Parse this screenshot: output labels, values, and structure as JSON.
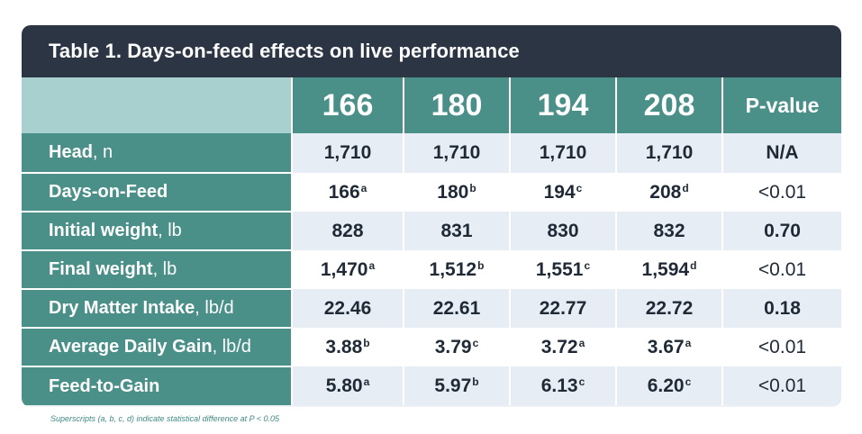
{
  "title": "Table 1. Days-on-feed effects on live performance",
  "columns": [
    "166",
    "180",
    "194",
    "208",
    "P-value"
  ],
  "rows": [
    {
      "label": "Head",
      "unit": ", n",
      "values": [
        {
          "v": "1,710",
          "s": ""
        },
        {
          "v": "1,710",
          "s": ""
        },
        {
          "v": "1,710",
          "s": ""
        },
        {
          "v": "1,710",
          "s": ""
        }
      ],
      "p": {
        "v": "N/A",
        "bold": true
      }
    },
    {
      "label": "Days-on-Feed",
      "unit": "",
      "values": [
        {
          "v": "166",
          "s": "a"
        },
        {
          "v": "180",
          "s": "b"
        },
        {
          "v": "194",
          "s": "c"
        },
        {
          "v": "208",
          "s": "d"
        }
      ],
      "p": {
        "v": "<0.01",
        "bold": false
      }
    },
    {
      "label": "Initial weight",
      "unit": ", lb",
      "values": [
        {
          "v": "828",
          "s": ""
        },
        {
          "v": "831",
          "s": ""
        },
        {
          "v": "830",
          "s": ""
        },
        {
          "v": "832",
          "s": ""
        }
      ],
      "p": {
        "v": "0.70",
        "bold": true
      }
    },
    {
      "label": "Final weight",
      "unit": ", lb",
      "values": [
        {
          "v": "1,470",
          "s": "a"
        },
        {
          "v": "1,512",
          "s": "b"
        },
        {
          "v": "1,551",
          "s": "c"
        },
        {
          "v": "1,594",
          "s": "d"
        }
      ],
      "p": {
        "v": "<0.01",
        "bold": false
      }
    },
    {
      "label": "Dry Matter Intake",
      "unit": ", lb/d",
      "values": [
        {
          "v": "22.46",
          "s": ""
        },
        {
          "v": "22.61",
          "s": ""
        },
        {
          "v": "22.77",
          "s": ""
        },
        {
          "v": "22.72",
          "s": ""
        }
      ],
      "p": {
        "v": "0.18",
        "bold": true
      }
    },
    {
      "label": "Average Daily Gain",
      "unit": ", lb/d",
      "values": [
        {
          "v": "3.88",
          "s": "b"
        },
        {
          "v": "3.79",
          "s": "c"
        },
        {
          "v": "3.72",
          "s": "a"
        },
        {
          "v": "3.67",
          "s": "a"
        }
      ],
      "p": {
        "v": "<0.01",
        "bold": false
      }
    },
    {
      "label": "Feed-to-Gain",
      "unit": "",
      "values": [
        {
          "v": "5.80",
          "s": "a"
        },
        {
          "v": "5.97",
          "s": "b"
        },
        {
          "v": "6.13",
          "s": "c"
        },
        {
          "v": "6.20",
          "s": "c"
        }
      ],
      "p": {
        "v": "<0.01",
        "bold": false
      }
    }
  ],
  "footnote": "Superscripts (a, b, c, d) indicate statistical difference at P < 0.05",
  "colors": {
    "title_bar": "#2b3544",
    "teal": "#4a9089",
    "light_teal": "#a8d0cf",
    "row_alt": "#e6edf4",
    "text_dark": "#1f2a36"
  }
}
